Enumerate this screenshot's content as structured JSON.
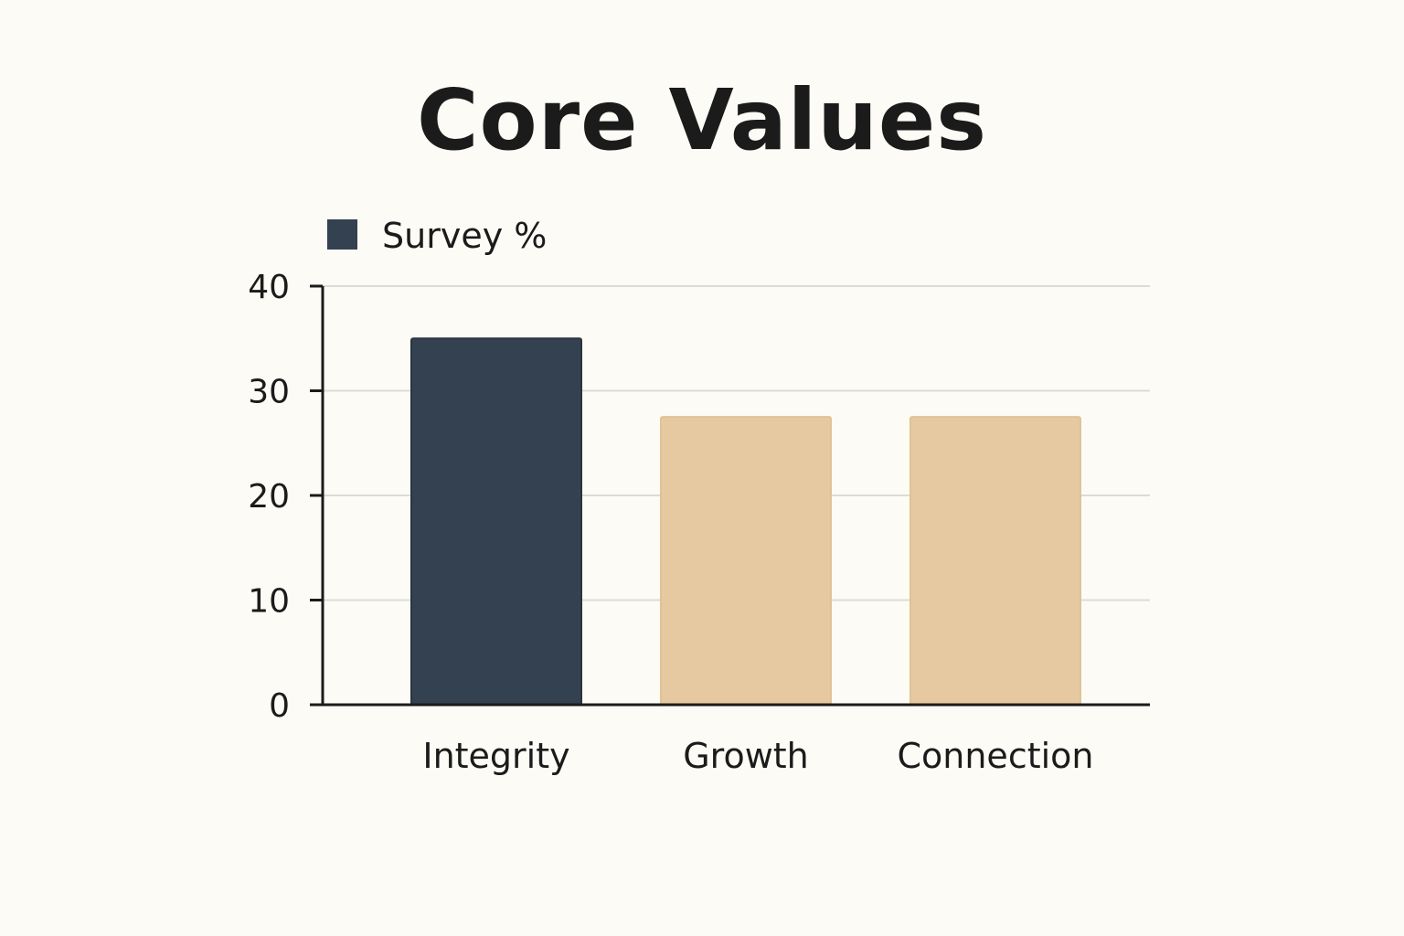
{
  "chart_data": {
    "type": "bar",
    "title": "Core Values",
    "categories": [
      "Integrity",
      "Growth",
      "Connection"
    ],
    "series": [
      {
        "name": "Survey %",
        "values": [
          35,
          27.5,
          27.5
        ]
      }
    ],
    "bar_colors": [
      "#344150",
      "#e6c9a0",
      "#e6c9a0"
    ],
    "legend_color": "#344150",
    "ylim": [
      0,
      40
    ],
    "yticks": [
      0,
      10,
      20,
      30,
      40
    ],
    "grid": true,
    "legend_position": "top-left"
  }
}
